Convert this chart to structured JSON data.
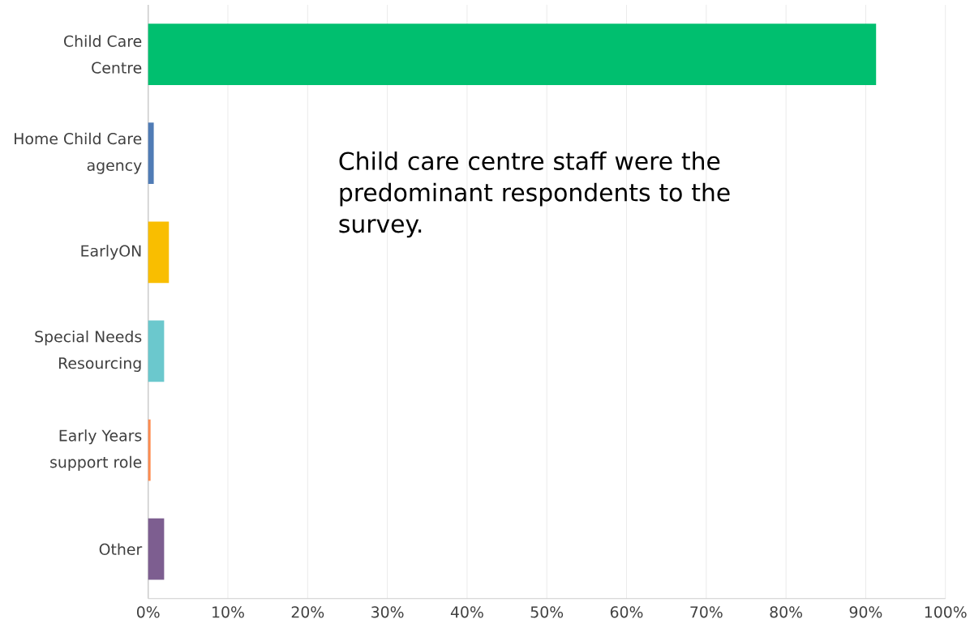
{
  "chart_data": {
    "type": "bar",
    "orientation": "horizontal",
    "categories": [
      "Child Care Centre",
      "Home Child Care agency",
      "EarlyON",
      "Special Needs Resourcing",
      "Early Years support role",
      "Other"
    ],
    "values": [
      91.3,
      0.7,
      2.6,
      2.0,
      0.3,
      2.0
    ],
    "colors": [
      "#00bf6f",
      "#507cb6",
      "#f9be00",
      "#6bc8cd",
      "#ff8b4f",
      "#7d5e90"
    ],
    "xlim": [
      0,
      100
    ],
    "xticks": [
      {
        "value": 0,
        "label": "0%"
      },
      {
        "value": 10,
        "label": "10%"
      },
      {
        "value": 20,
        "label": "20%"
      },
      {
        "value": 30,
        "label": "30%"
      },
      {
        "value": 40,
        "label": "40%"
      },
      {
        "value": 50,
        "label": "50%"
      },
      {
        "value": 60,
        "label": "60%"
      },
      {
        "value": 70,
        "label": "70%"
      },
      {
        "value": 80,
        "label": "80%"
      },
      {
        "value": 90,
        "label": "90%"
      },
      {
        "value": 100,
        "label": "100%"
      }
    ],
    "grid": "x",
    "annotations": [
      "Child care centre staff were the predominant respondents to the survey."
    ]
  }
}
